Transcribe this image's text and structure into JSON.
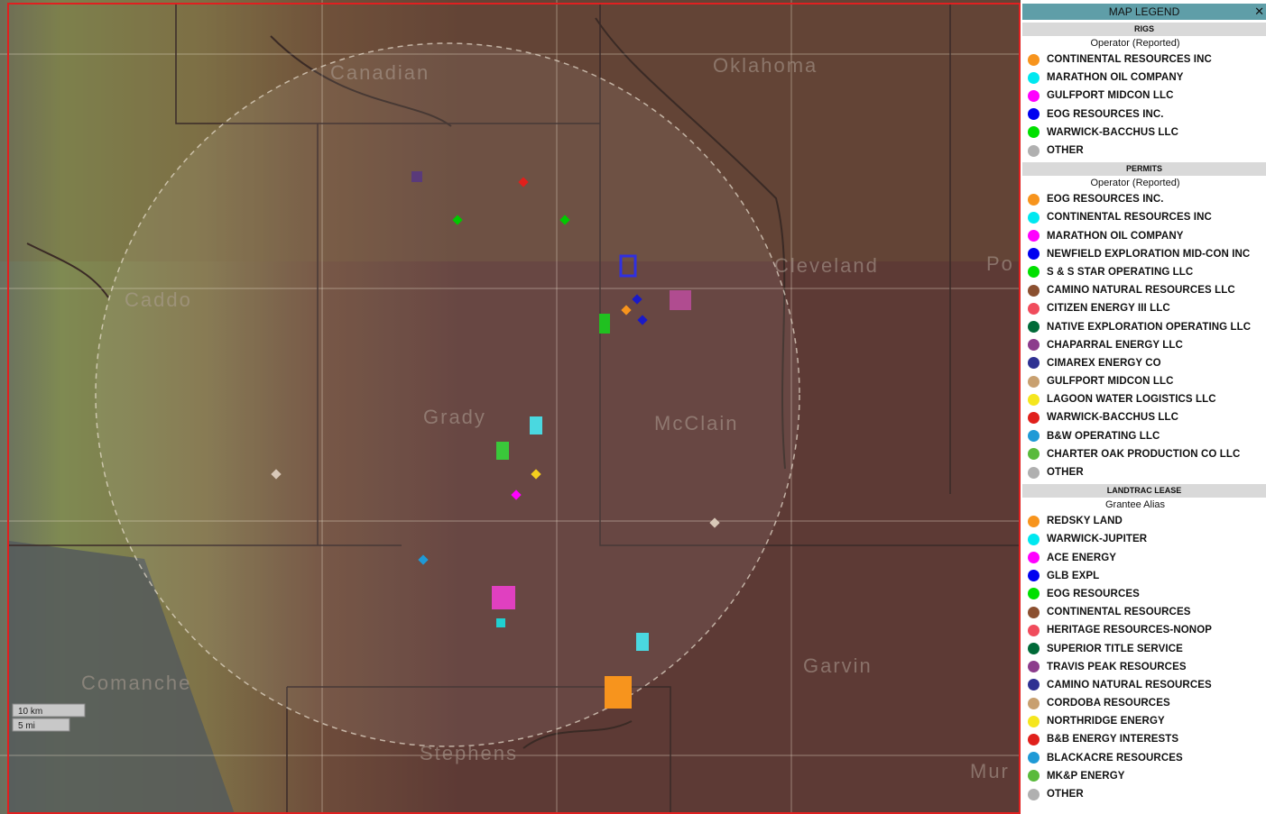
{
  "map": {
    "counties": [
      "Canadian",
      "Oklahoma",
      "Caddo",
      "Cleveland",
      "Po",
      "Grady",
      "McClain",
      "Comanche",
      "Garvin",
      "Stephens",
      "Mur"
    ],
    "scale": [
      "10 km",
      "5 mi"
    ]
  },
  "legend": {
    "title": "MAP LEGEND",
    "close": "✕",
    "sections": [
      {
        "title": "RIGS",
        "subtitle": "Operator (Reported)",
        "items": [
          {
            "label": "CONTINENTAL RESOURCES INC",
            "color": "#f7941d"
          },
          {
            "label": "MARATHON OIL COMPANY",
            "color": "#00e8f0"
          },
          {
            "label": "GULFPORT MIDCON LLC",
            "color": "#ff00ff"
          },
          {
            "label": "EOG RESOURCES INC.",
            "color": "#0000f0"
          },
          {
            "label": "WARWICK-BACCHUS LLC",
            "color": "#00e000"
          },
          {
            "label": "OTHER",
            "color": "#b0b0b0"
          }
        ]
      },
      {
        "title": "PERMITS",
        "subtitle": "Operator (Reported)",
        "items": [
          {
            "label": "EOG RESOURCES INC.",
            "color": "#f7941d"
          },
          {
            "label": "CONTINENTAL RESOURCES INC",
            "color": "#00e8f0"
          },
          {
            "label": "MARATHON OIL COMPANY",
            "color": "#ff00ff"
          },
          {
            "label": "NEWFIELD EXPLORATION MID-CON INC",
            "color": "#0000f0"
          },
          {
            "label": "S & S STAR OPERATING LLC",
            "color": "#00e000"
          },
          {
            "label": "CAMINO NATURAL RESOURCES LLC",
            "color": "#8b5030"
          },
          {
            "label": "CITIZEN ENERGY III LLC",
            "color": "#f04c5c"
          },
          {
            "label": "NATIVE EXPLORATION OPERATING LLC",
            "color": "#006a38"
          },
          {
            "label": "CHAPARRAL ENERGY LLC",
            "color": "#8c3c8c"
          },
          {
            "label": "CIMAREX ENERGY CO",
            "color": "#2e3192"
          },
          {
            "label": "GULFPORT MIDCON LLC",
            "color": "#c8a070"
          },
          {
            "label": "LAGOON WATER LOGISTICS LLC",
            "color": "#f5e61e"
          },
          {
            "label": "WARWICK-BACCHUS LLC",
            "color": "#e0201c"
          },
          {
            "label": "B&W OPERATING LLC",
            "color": "#1f9ad6"
          },
          {
            "label": "CHARTER OAK PRODUCTION CO LLC",
            "color": "#5aba3c"
          },
          {
            "label": "OTHER",
            "color": "#b0b0b0"
          }
        ]
      },
      {
        "title": "LANDTRAC LEASE",
        "subtitle": "Grantee Alias",
        "items": [
          {
            "label": "REDSKY LAND",
            "color": "#f7941d"
          },
          {
            "label": "WARWICK-JUPITER",
            "color": "#00e8f0"
          },
          {
            "label": "ACE ENERGY",
            "color": "#ff00ff"
          },
          {
            "label": "GLB EXPL",
            "color": "#0000f0"
          },
          {
            "label": "EOG RESOURCES",
            "color": "#00e000"
          },
          {
            "label": "CONTINENTAL RESOURCES",
            "color": "#8b5030"
          },
          {
            "label": "HERITAGE RESOURCES-NONOP",
            "color": "#f04c5c"
          },
          {
            "label": "SUPERIOR TITLE SERVICE",
            "color": "#006a38"
          },
          {
            "label": "TRAVIS PEAK RESOURCES",
            "color": "#8c3c8c"
          },
          {
            "label": "CAMINO NATURAL RESOURCES",
            "color": "#2e3192"
          },
          {
            "label": "CORDOBA RESOURCES",
            "color": "#c8a070"
          },
          {
            "label": "NORTHRIDGE ENERGY",
            "color": "#f5e61e"
          },
          {
            "label": "B&B ENERGY INTERESTS",
            "color": "#e0201c"
          },
          {
            "label": "BLACKACRE RESOURCES",
            "color": "#1f9ad6"
          },
          {
            "label": "MK&P ENERGY",
            "color": "#5aba3c"
          },
          {
            "label": "OTHER",
            "color": "#b0b0b0"
          }
        ]
      }
    ]
  }
}
